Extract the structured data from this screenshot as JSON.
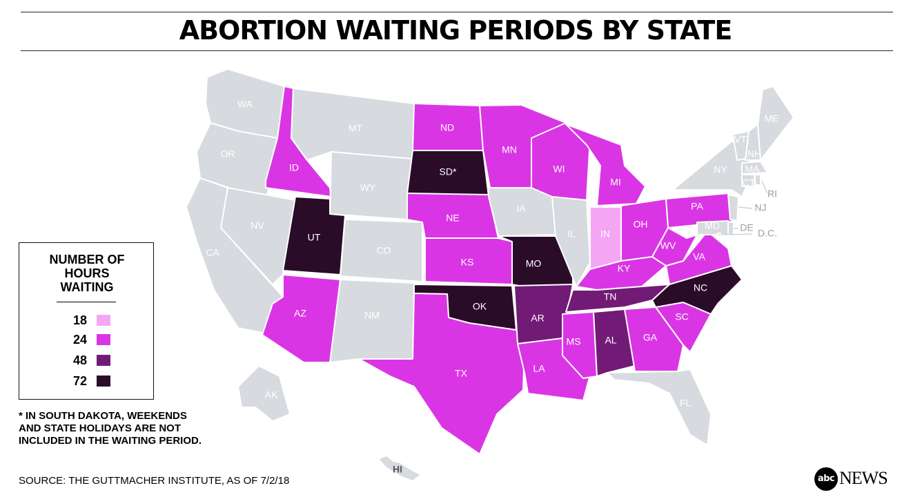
{
  "title": "ABORTION WAITING PERIODS BY STATE",
  "legend": {
    "title_lines": [
      "NUMBER OF",
      "HOURS",
      "WAITING"
    ],
    "items": [
      {
        "label": "18",
        "color": "#f4a6f5"
      },
      {
        "label": "24",
        "color": "#da35e4"
      },
      {
        "label": "48",
        "color": "#711b77"
      },
      {
        "label": "72",
        "color": "#2a0c28"
      }
    ]
  },
  "colors": {
    "no_waiting_period": "#d7dade",
    "text_light": "#ffffff",
    "text_grey": "#ffffff"
  },
  "states": [
    {
      "abbr": "WA",
      "hours": null
    },
    {
      "abbr": "OR",
      "hours": null
    },
    {
      "abbr": "CA",
      "hours": null
    },
    {
      "abbr": "NV",
      "hours": null
    },
    {
      "abbr": "ID",
      "hours": 24
    },
    {
      "abbr": "MT",
      "hours": null
    },
    {
      "abbr": "WY",
      "hours": null
    },
    {
      "abbr": "UT",
      "hours": 72
    },
    {
      "abbr": "AZ",
      "hours": 24
    },
    {
      "abbr": "CO",
      "hours": null
    },
    {
      "abbr": "NM",
      "hours": null
    },
    {
      "abbr": "ND",
      "hours": 24
    },
    {
      "abbr": "SD*",
      "hours": 72
    },
    {
      "abbr": "NE",
      "hours": 24
    },
    {
      "abbr": "KS",
      "hours": 24
    },
    {
      "abbr": "OK",
      "hours": 72
    },
    {
      "abbr": "TX",
      "hours": 24
    },
    {
      "abbr": "MN",
      "hours": 24
    },
    {
      "abbr": "IA",
      "hours": null
    },
    {
      "abbr": "MO",
      "hours": 72
    },
    {
      "abbr": "AR",
      "hours": 48
    },
    {
      "abbr": "LA",
      "hours": 24
    },
    {
      "abbr": "WI",
      "hours": 24
    },
    {
      "abbr": "IL",
      "hours": null
    },
    {
      "abbr": "MI",
      "hours": 24
    },
    {
      "abbr": "IN",
      "hours": 18
    },
    {
      "abbr": "OH",
      "hours": 24
    },
    {
      "abbr": "KY",
      "hours": 24
    },
    {
      "abbr": "TN",
      "hours": 48
    },
    {
      "abbr": "MS",
      "hours": 24
    },
    {
      "abbr": "AL",
      "hours": 48
    },
    {
      "abbr": "GA",
      "hours": 24
    },
    {
      "abbr": "FL",
      "hours": null
    },
    {
      "abbr": "SC",
      "hours": 24
    },
    {
      "abbr": "NC",
      "hours": 72
    },
    {
      "abbr": "VA",
      "hours": 24
    },
    {
      "abbr": "WV",
      "hours": 24
    },
    {
      "abbr": "PA",
      "hours": 24
    },
    {
      "abbr": "NY",
      "hours": null
    },
    {
      "abbr": "VT",
      "hours": null
    },
    {
      "abbr": "NH",
      "hours": null
    },
    {
      "abbr": "ME",
      "hours": null
    },
    {
      "abbr": "MA",
      "hours": null
    },
    {
      "abbr": "CT",
      "hours": null
    },
    {
      "abbr": "RI",
      "hours": null
    },
    {
      "abbr": "NJ",
      "hours": null
    },
    {
      "abbr": "DE",
      "hours": null
    },
    {
      "abbr": "MD",
      "hours": null
    },
    {
      "abbr": "D.C.",
      "hours": null
    },
    {
      "abbr": "AK",
      "hours": null
    },
    {
      "abbr": "HI",
      "hours": null
    }
  ],
  "footnote_lines": [
    "* IN SOUTH DAKOTA, WEEKENDS",
    "AND STATE HOLIDAYS ARE NOT",
    "INCLUDED IN THE WAITING PERIOD."
  ],
  "source": "SOURCE: THE GUTTMACHER INSTITUTE, AS OF 7/2/18",
  "logo": {
    "badge": "abc",
    "word": "NEWS"
  }
}
